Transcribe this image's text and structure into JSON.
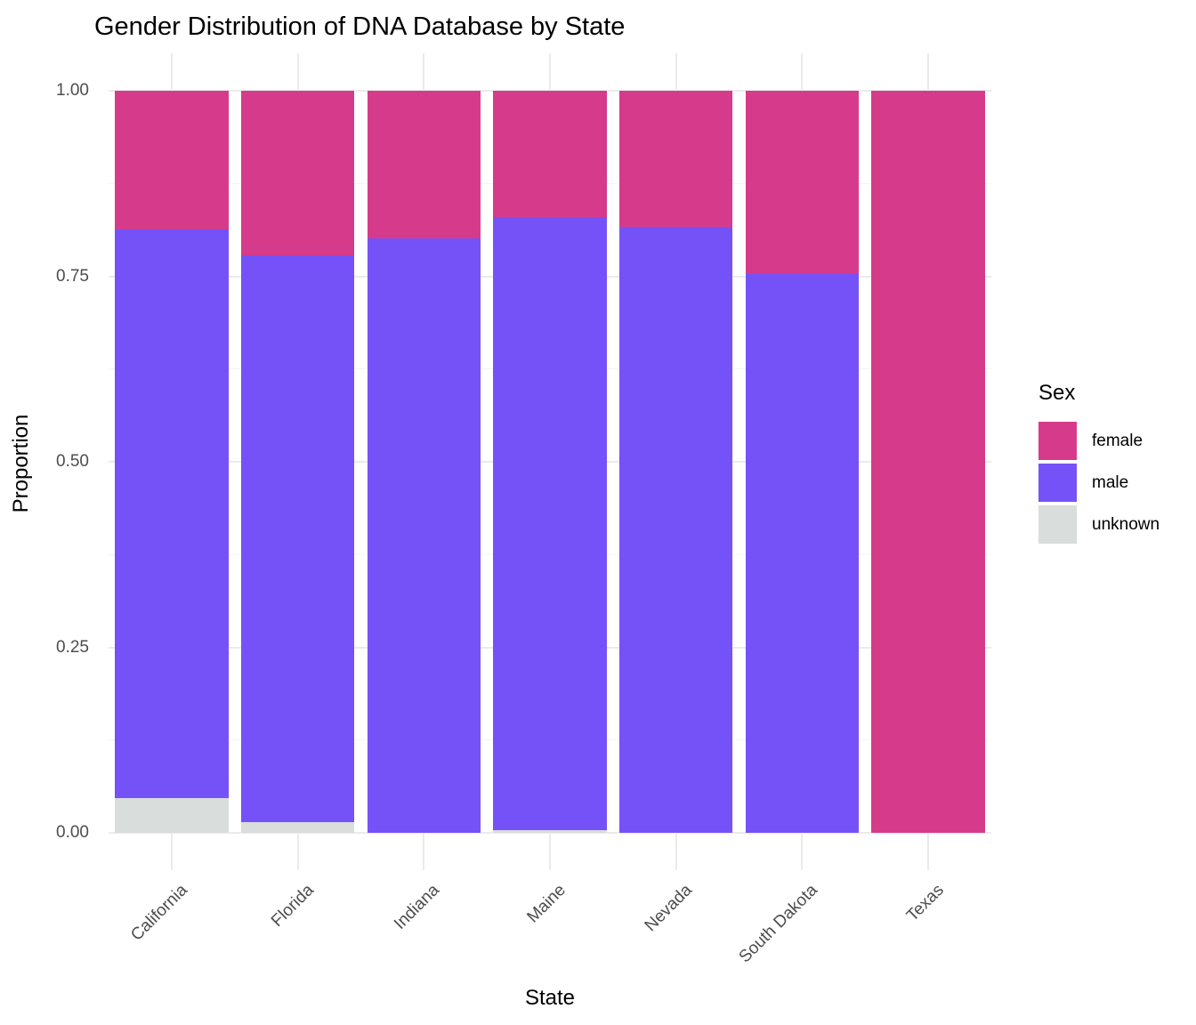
{
  "title": "Gender Distribution of DNA Database by State",
  "chart_data": {
    "type": "bar",
    "stacked": true,
    "title": "Gender Distribution of DNA Database by State",
    "xlabel": "State",
    "ylabel": "Proportion",
    "categories": [
      "California",
      "Florida",
      "Indiana",
      "Maine",
      "Nevada",
      "South Dakota",
      "Texas"
    ],
    "series": [
      {
        "name": "female",
        "color": "#D63B8B",
        "values": [
          0.187,
          0.222,
          0.199,
          0.17,
          0.184,
          0.247,
          1.0
        ]
      },
      {
        "name": "male",
        "color": "#7552F7",
        "values": [
          0.766,
          0.764,
          0.801,
          0.826,
          0.816,
          0.753,
          0.0
        ]
      },
      {
        "name": "unknown",
        "color": "#D9DDDB",
        "values": [
          0.047,
          0.014,
          0.0,
          0.004,
          0.0,
          0.0,
          0.0
        ]
      }
    ],
    "stack_order_bottom_to_top": [
      "unknown",
      "male",
      "female"
    ],
    "ylim": [
      0,
      1
    ],
    "yticks": [
      {
        "value": 0.0,
        "label": "0.00"
      },
      {
        "value": 0.25,
        "label": "0.25"
      },
      {
        "value": 0.5,
        "label": "0.50"
      },
      {
        "value": 0.75,
        "label": "0.75"
      },
      {
        "value": 1.0,
        "label": "1.00"
      }
    ],
    "y_minor_gridlines": [
      0.125,
      0.375,
      0.625,
      0.875
    ],
    "x_tick_rotation_deg": 45,
    "legend_title": "Sex",
    "legend_position": "right",
    "legend_items": [
      "female",
      "male",
      "unknown"
    ],
    "grid": "major-and-minor",
    "bar_width_fraction": 0.9
  },
  "style_colors": {
    "background": "#FFFFFF",
    "grid_major": "#EBEBEB",
    "grid_minor": "#F4F4F4",
    "axis_text": "#4D4D4D",
    "title_text": "#000000",
    "female": "#D63B8B",
    "male": "#7552F7",
    "unknown": "#D9DDDB"
  }
}
